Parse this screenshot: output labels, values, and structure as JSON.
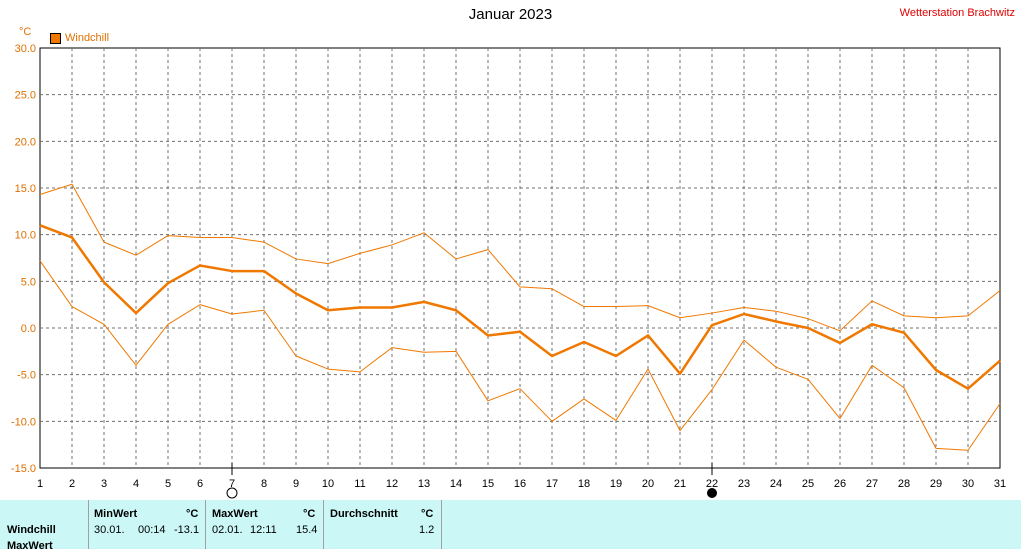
{
  "header": {
    "title": "Januar 2023",
    "station": "Wetterstation Brachwitz",
    "unit": "°C",
    "legend_label": "Windchill"
  },
  "markers": {
    "full_moon_day": 7,
    "new_moon_day": 22
  },
  "colors": {
    "series": "#f07800",
    "axis_text": "#e07000",
    "grid": "#707070",
    "table_bg": "#ccf7f7",
    "station": "#e00000"
  },
  "chart_data": {
    "type": "line",
    "title": "Januar 2023",
    "ylabel": "°C",
    "xlabel": "",
    "ylim": [
      -15,
      30
    ],
    "xlim": [
      1,
      31
    ],
    "y_ticks": [
      "30.0",
      "25.0",
      "20.0",
      "15.0",
      "10.0",
      "5.0",
      "0.0",
      "-5.0",
      "-10.0",
      "-15.0"
    ],
    "x": [
      1,
      2,
      3,
      4,
      5,
      6,
      7,
      8,
      9,
      10,
      11,
      12,
      13,
      14,
      15,
      16,
      17,
      18,
      19,
      20,
      21,
      22,
      23,
      24,
      25,
      26,
      27,
      28,
      29,
      30,
      31
    ],
    "grid": true,
    "legend": "top-left",
    "series": [
      {
        "name": "Windchill",
        "role": "avg",
        "values": [
          11.0,
          9.7,
          4.9,
          1.6,
          4.8,
          6.7,
          6.1,
          6.1,
          3.7,
          1.9,
          2.2,
          2.2,
          2.8,
          1.9,
          -0.8,
          -0.4,
          -3.0,
          -1.5,
          -3.0,
          -0.8,
          -4.9,
          0.3,
          1.5,
          0.7,
          0.0,
          -1.6,
          0.4,
          -0.5,
          -4.5,
          -6.5,
          -3.5
        ]
      },
      {
        "role": "max",
        "values": [
          14.3,
          15.4,
          9.2,
          7.8,
          9.9,
          9.7,
          9.7,
          9.2,
          7.4,
          6.9,
          8.0,
          8.9,
          10.2,
          7.4,
          8.4,
          4.4,
          4.2,
          2.3,
          2.3,
          2.4,
          1.1,
          1.6,
          2.2,
          1.8,
          1.0,
          -0.3,
          2.9,
          1.3,
          1.1,
          1.3,
          4.0
        ]
      },
      {
        "role": "min",
        "values": [
          7.2,
          2.3,
          0.4,
          -4.0,
          0.4,
          2.5,
          1.5,
          1.9,
          -3.0,
          -4.4,
          -4.7,
          -2.1,
          -2.6,
          -2.5,
          -7.8,
          -6.5,
          -10.0,
          -7.6,
          -9.9,
          -4.4,
          -11.0,
          -6.6,
          -1.3,
          -4.2,
          -5.5,
          -9.7,
          -4.0,
          -6.4,
          -12.9,
          -13.1,
          -8.1
        ]
      }
    ]
  },
  "stats": {
    "row_label_1": "Windchill",
    "row_label_2": "MaxWert",
    "min_header": "MinWert",
    "max_header": "MaxWert",
    "avg_header": "Durchschnitt",
    "unit": "°C",
    "min_date": "30.01.",
    "min_time": "00:14",
    "min_value": "-13.1",
    "max_date": "02.01.",
    "max_time": "12:11",
    "max_value": "15.4",
    "avg_value": "1.2"
  }
}
